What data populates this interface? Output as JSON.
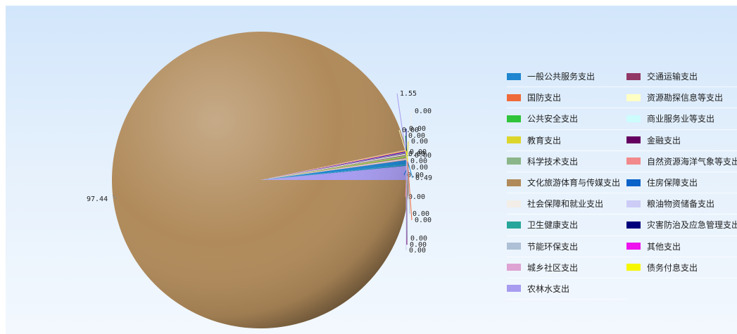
{
  "chart_data": {
    "type": "pie",
    "title": "",
    "slices": [
      {
        "name": "一般公共服务支出",
        "value": 0.49,
        "label": "0.49",
        "color": "#1f86cf"
      },
      {
        "name": "国防支出",
        "value": 0.0,
        "label": "0.00",
        "color": "#ef6a3a"
      },
      {
        "name": "公共安全支出",
        "value": 0.0,
        "label": "0.00",
        "color": "#2fc43a"
      },
      {
        "name": "教育支出",
        "value": 0.0,
        "label": "0.00",
        "color": "#dcd52c"
      },
      {
        "name": "科学技术支出",
        "value": 0.0,
        "label": "0.00",
        "color": "#8bb58a"
      },
      {
        "name": "文化旅游体育与传媒支出",
        "value": 97.44,
        "label": "97.44",
        "color": "#b08a5a"
      },
      {
        "name": "社会保障和就业支出",
        "value": 0.0,
        "label": "0.00",
        "color": "#f2ede6"
      },
      {
        "name": "卫生健康支出",
        "value": 0.0,
        "label": "0.00",
        "color": "#26a59a"
      },
      {
        "name": "节能环保支出",
        "value": 0.0,
        "label": "0.00",
        "color": "#aec0d6"
      },
      {
        "name": "城乡社区支出",
        "value": 0.0,
        "label": "0.00",
        "color": "#dea2d3"
      },
      {
        "name": "农林水支出",
        "value": 1.55,
        "label": "1.55",
        "color": "#a79cf0"
      },
      {
        "name": "交通运输支出",
        "value": 0.0,
        "label": "0.00",
        "color": "#923867"
      },
      {
        "name": "资源勘探信息等支出",
        "value": 0.0,
        "label": "0.00",
        "color": "#ffffc4"
      },
      {
        "name": "商业服务业等支出",
        "value": 0.0,
        "label": "0.00",
        "color": "#ccfcfc"
      },
      {
        "name": "金融支出",
        "value": 0.0,
        "label": "0.00",
        "color": "#640060"
      },
      {
        "name": "自然资源海洋气象等支出",
        "value": 0.0,
        "label": "0.00",
        "color": "#f2898c"
      },
      {
        "name": "住房保障支出",
        "value": 0.0,
        "label": "0.00",
        "color": "#0a63c8"
      },
      {
        "name": "粮油物资储备支出",
        "value": 0.0,
        "label": "0.00",
        "color": "#ccccf6"
      },
      {
        "name": "灾害防治及应急管理支出",
        "value": 0.0,
        "label": "0.00",
        "color": "#00007c"
      },
      {
        "name": "其他支出",
        "value": 0.0,
        "label": "0.00",
        "color": "#ee12ee"
      },
      {
        "name": "债务付息支出",
        "value": 0.0,
        "label": "0.00",
        "color": "#f7f700"
      }
    ],
    "legend": {
      "position": "right",
      "columns": 2
    }
  }
}
